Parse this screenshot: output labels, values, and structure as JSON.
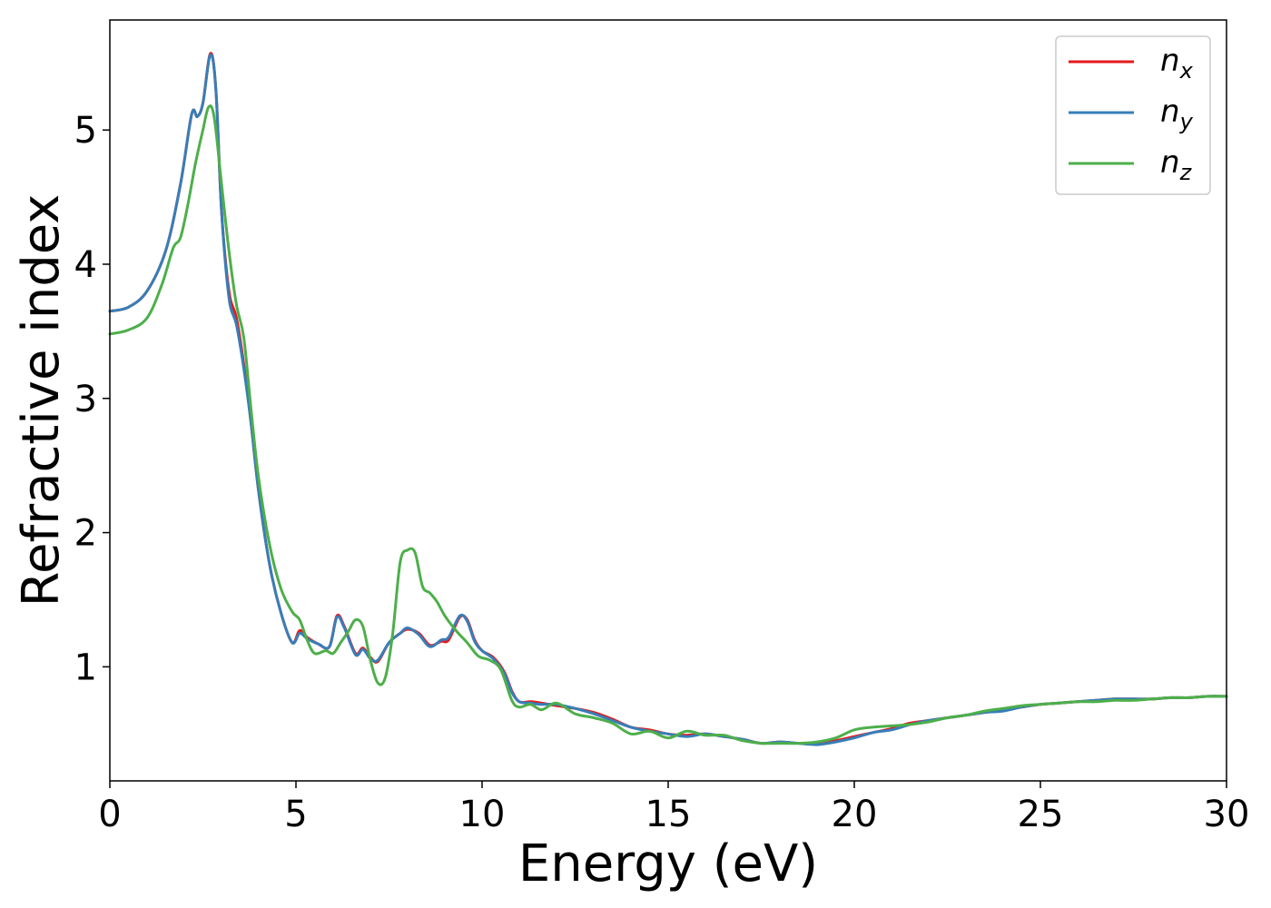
{
  "chart_data": {
    "type": "line",
    "title": "",
    "xlabel": "Energy (eV)",
    "ylabel": "Refractive index",
    "xlim": [
      0,
      30
    ],
    "ylim": [
      0.15,
      5.82
    ],
    "xticks": [
      "0",
      "5",
      "10",
      "15",
      "20",
      "25",
      "30"
    ],
    "xtick_values": [
      0,
      5,
      10,
      15,
      20,
      25,
      30
    ],
    "yticks": [
      "1",
      "2",
      "3",
      "4",
      "5"
    ],
    "ytick_values": [
      1,
      2,
      3,
      4,
      5
    ],
    "grid": false,
    "legend_position": "top-right",
    "series": [
      {
        "name": "n_x",
        "legend_base": "n",
        "legend_sub": "x",
        "color": "#e41a1c",
        "points": [
          [
            0,
            3.65
          ],
          [
            0.5,
            3.68
          ],
          [
            1.0,
            3.8
          ],
          [
            1.5,
            4.1
          ],
          [
            1.9,
            4.6
          ],
          [
            2.2,
            5.12
          ],
          [
            2.35,
            5.1
          ],
          [
            2.5,
            5.2
          ],
          [
            2.7,
            5.57
          ],
          [
            2.85,
            5.3
          ],
          [
            3.0,
            4.4
          ],
          [
            3.2,
            3.8
          ],
          [
            3.4,
            3.6
          ],
          [
            3.6,
            3.25
          ],
          [
            3.8,
            2.8
          ],
          [
            4.0,
            2.3
          ],
          [
            4.3,
            1.75
          ],
          [
            4.6,
            1.4
          ],
          [
            4.9,
            1.18
          ],
          [
            5.1,
            1.27
          ],
          [
            5.3,
            1.22
          ],
          [
            5.6,
            1.17
          ],
          [
            5.9,
            1.15
          ],
          [
            6.1,
            1.38
          ],
          [
            6.3,
            1.3
          ],
          [
            6.6,
            1.1
          ],
          [
            6.8,
            1.14
          ],
          [
            7.0,
            1.07
          ],
          [
            7.2,
            1.04
          ],
          [
            7.5,
            1.18
          ],
          [
            7.8,
            1.25
          ],
          [
            8.0,
            1.28
          ],
          [
            8.3,
            1.25
          ],
          [
            8.6,
            1.16
          ],
          [
            8.9,
            1.19
          ],
          [
            9.1,
            1.2
          ],
          [
            9.4,
            1.37
          ],
          [
            9.6,
            1.35
          ],
          [
            9.8,
            1.2
          ],
          [
            10.0,
            1.12
          ],
          [
            10.3,
            1.07
          ],
          [
            10.6,
            0.96
          ],
          [
            10.8,
            0.82
          ],
          [
            11.0,
            0.74
          ],
          [
            11.3,
            0.74
          ],
          [
            11.6,
            0.73
          ],
          [
            12.0,
            0.71
          ],
          [
            12.5,
            0.69
          ],
          [
            13.0,
            0.66
          ],
          [
            13.5,
            0.61
          ],
          [
            14.0,
            0.55
          ],
          [
            14.5,
            0.53
          ],
          [
            15.0,
            0.5
          ],
          [
            15.5,
            0.49
          ],
          [
            16.0,
            0.5
          ],
          [
            16.5,
            0.48
          ],
          [
            17.0,
            0.46
          ],
          [
            17.5,
            0.43
          ],
          [
            18.0,
            0.44
          ],
          [
            18.5,
            0.43
          ],
          [
            19.0,
            0.43
          ],
          [
            19.5,
            0.45
          ],
          [
            20.0,
            0.48
          ],
          [
            20.5,
            0.51
          ],
          [
            21.0,
            0.54
          ],
          [
            21.5,
            0.58
          ],
          [
            22.0,
            0.6
          ],
          [
            22.5,
            0.62
          ],
          [
            23.0,
            0.64
          ],
          [
            23.5,
            0.66
          ],
          [
            24.0,
            0.68
          ],
          [
            24.5,
            0.7
          ],
          [
            25.0,
            0.72
          ],
          [
            25.5,
            0.73
          ],
          [
            26.0,
            0.74
          ],
          [
            26.5,
            0.75
          ],
          [
            27.0,
            0.76
          ],
          [
            27.5,
            0.76
          ],
          [
            28.0,
            0.76
          ],
          [
            28.5,
            0.77
          ],
          [
            29.0,
            0.77
          ],
          [
            29.5,
            0.78
          ],
          [
            30.0,
            0.78
          ]
        ]
      },
      {
        "name": "n_y",
        "legend_base": "n",
        "legend_sub": "y",
        "color": "#377eb8",
        "points": [
          [
            0,
            3.65
          ],
          [
            0.5,
            3.68
          ],
          [
            1.0,
            3.8
          ],
          [
            1.5,
            4.1
          ],
          [
            1.9,
            4.6
          ],
          [
            2.2,
            5.12
          ],
          [
            2.35,
            5.1
          ],
          [
            2.5,
            5.2
          ],
          [
            2.7,
            5.56
          ],
          [
            2.85,
            5.3
          ],
          [
            3.0,
            4.4
          ],
          [
            3.2,
            3.75
          ],
          [
            3.4,
            3.55
          ],
          [
            3.6,
            3.22
          ],
          [
            3.8,
            2.8
          ],
          [
            4.0,
            2.3
          ],
          [
            4.3,
            1.75
          ],
          [
            4.6,
            1.4
          ],
          [
            4.9,
            1.18
          ],
          [
            5.1,
            1.25
          ],
          [
            5.3,
            1.21
          ],
          [
            5.6,
            1.17
          ],
          [
            5.9,
            1.15
          ],
          [
            6.1,
            1.37
          ],
          [
            6.3,
            1.29
          ],
          [
            6.6,
            1.09
          ],
          [
            6.8,
            1.13
          ],
          [
            7.0,
            1.06
          ],
          [
            7.2,
            1.05
          ],
          [
            7.5,
            1.18
          ],
          [
            7.8,
            1.25
          ],
          [
            8.0,
            1.29
          ],
          [
            8.3,
            1.24
          ],
          [
            8.6,
            1.15
          ],
          [
            8.9,
            1.2
          ],
          [
            9.1,
            1.22
          ],
          [
            9.4,
            1.38
          ],
          [
            9.6,
            1.34
          ],
          [
            9.8,
            1.19
          ],
          [
            10.0,
            1.12
          ],
          [
            10.3,
            1.06
          ],
          [
            10.6,
            0.95
          ],
          [
            10.8,
            0.81
          ],
          [
            11.0,
            0.74
          ],
          [
            11.3,
            0.73
          ],
          [
            11.6,
            0.72
          ],
          [
            12.0,
            0.72
          ],
          [
            12.5,
            0.69
          ],
          [
            13.0,
            0.65
          ],
          [
            13.5,
            0.6
          ],
          [
            14.0,
            0.55
          ],
          [
            14.5,
            0.52
          ],
          [
            15.0,
            0.5
          ],
          [
            15.5,
            0.48
          ],
          [
            16.0,
            0.5
          ],
          [
            16.5,
            0.48
          ],
          [
            17.0,
            0.46
          ],
          [
            17.5,
            0.43
          ],
          [
            18.0,
            0.44
          ],
          [
            18.5,
            0.43
          ],
          [
            19.0,
            0.42
          ],
          [
            19.5,
            0.44
          ],
          [
            20.0,
            0.47
          ],
          [
            20.5,
            0.51
          ],
          [
            21.0,
            0.53
          ],
          [
            21.5,
            0.57
          ],
          [
            22.0,
            0.6
          ],
          [
            22.5,
            0.62
          ],
          [
            23.0,
            0.64
          ],
          [
            23.5,
            0.66
          ],
          [
            24.0,
            0.67
          ],
          [
            24.5,
            0.7
          ],
          [
            25.0,
            0.72
          ],
          [
            25.5,
            0.73
          ],
          [
            26.0,
            0.74
          ],
          [
            26.5,
            0.75
          ],
          [
            27.0,
            0.76
          ],
          [
            27.5,
            0.76
          ],
          [
            28.0,
            0.76
          ],
          [
            28.5,
            0.77
          ],
          [
            29.0,
            0.77
          ],
          [
            29.5,
            0.78
          ],
          [
            30.0,
            0.78
          ]
        ]
      },
      {
        "name": "n_z",
        "legend_base": "n",
        "legend_sub": "z",
        "color": "#4daf4a",
        "points": [
          [
            0,
            3.48
          ],
          [
            0.5,
            3.51
          ],
          [
            1.0,
            3.6
          ],
          [
            1.4,
            3.85
          ],
          [
            1.7,
            4.12
          ],
          [
            1.9,
            4.2
          ],
          [
            2.1,
            4.45
          ],
          [
            2.3,
            4.75
          ],
          [
            2.5,
            5.0
          ],
          [
            2.65,
            5.17
          ],
          [
            2.8,
            5.1
          ],
          [
            3.0,
            4.6
          ],
          [
            3.2,
            4.1
          ],
          [
            3.4,
            3.7
          ],
          [
            3.6,
            3.45
          ],
          [
            3.8,
            2.9
          ],
          [
            4.0,
            2.4
          ],
          [
            4.3,
            1.9
          ],
          [
            4.6,
            1.58
          ],
          [
            4.9,
            1.41
          ],
          [
            5.1,
            1.35
          ],
          [
            5.3,
            1.2
          ],
          [
            5.5,
            1.1
          ],
          [
            5.8,
            1.12
          ],
          [
            6.0,
            1.1
          ],
          [
            6.2,
            1.18
          ],
          [
            6.4,
            1.26
          ],
          [
            6.6,
            1.35
          ],
          [
            6.8,
            1.3
          ],
          [
            7.0,
            1.05
          ],
          [
            7.2,
            0.88
          ],
          [
            7.4,
            0.92
          ],
          [
            7.6,
            1.25
          ],
          [
            7.8,
            1.78
          ],
          [
            8.0,
            1.87
          ],
          [
            8.2,
            1.85
          ],
          [
            8.4,
            1.6
          ],
          [
            8.6,
            1.55
          ],
          [
            8.8,
            1.48
          ],
          [
            9.0,
            1.38
          ],
          [
            9.3,
            1.27
          ],
          [
            9.6,
            1.18
          ],
          [
            9.9,
            1.08
          ],
          [
            10.2,
            1.05
          ],
          [
            10.5,
            0.98
          ],
          [
            10.8,
            0.75
          ],
          [
            11.0,
            0.7
          ],
          [
            11.3,
            0.72
          ],
          [
            11.6,
            0.68
          ],
          [
            12.0,
            0.73
          ],
          [
            12.5,
            0.65
          ],
          [
            13.0,
            0.62
          ],
          [
            13.5,
            0.58
          ],
          [
            14.0,
            0.5
          ],
          [
            14.5,
            0.52
          ],
          [
            15.0,
            0.47
          ],
          [
            15.5,
            0.52
          ],
          [
            16.0,
            0.49
          ],
          [
            16.5,
            0.49
          ],
          [
            17.0,
            0.45
          ],
          [
            17.5,
            0.43
          ],
          [
            18.0,
            0.43
          ],
          [
            18.5,
            0.43
          ],
          [
            19.0,
            0.44
          ],
          [
            19.5,
            0.47
          ],
          [
            20.0,
            0.53
          ],
          [
            20.5,
            0.55
          ],
          [
            21.0,
            0.56
          ],
          [
            21.5,
            0.57
          ],
          [
            22.0,
            0.59
          ],
          [
            22.5,
            0.62
          ],
          [
            23.0,
            0.64
          ],
          [
            23.5,
            0.67
          ],
          [
            24.0,
            0.69
          ],
          [
            24.5,
            0.71
          ],
          [
            25.0,
            0.72
          ],
          [
            25.5,
            0.73
          ],
          [
            26.0,
            0.74
          ],
          [
            26.5,
            0.74
          ],
          [
            27.0,
            0.75
          ],
          [
            27.5,
            0.75
          ],
          [
            28.0,
            0.76
          ],
          [
            28.5,
            0.77
          ],
          [
            29.0,
            0.77
          ],
          [
            29.5,
            0.78
          ],
          [
            30.0,
            0.78
          ]
        ]
      }
    ]
  }
}
